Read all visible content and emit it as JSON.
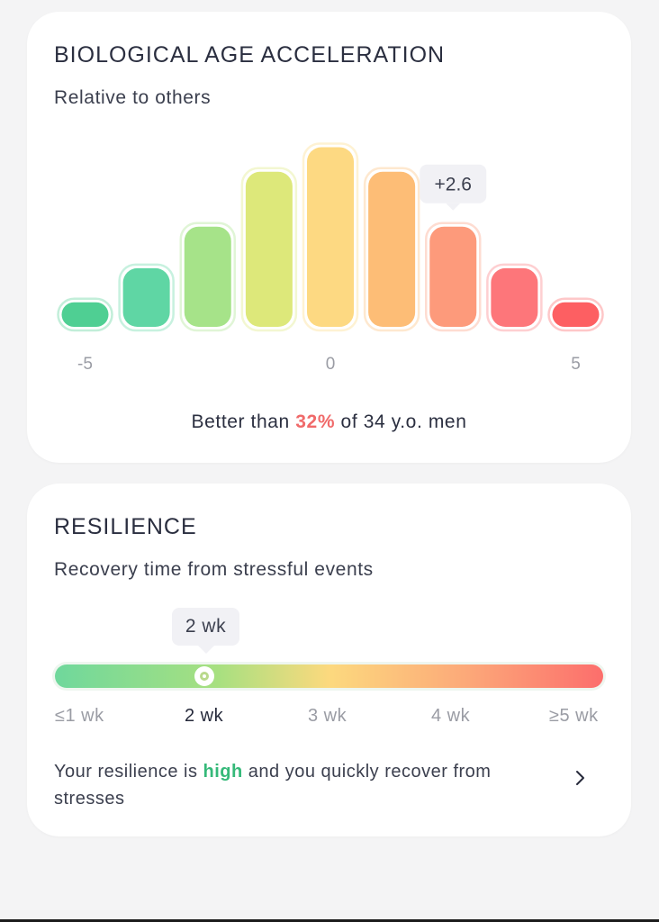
{
  "bio_age": {
    "title": "BIOLOGICAL AGE ACCELERATION",
    "subtitle": "Relative to others",
    "tooltip": "+2.6",
    "footer": {
      "prefix": "Better than ",
      "percent": "32%",
      "suffix": " of 34 y.o. men"
    },
    "colors": {
      "highlight": "#f06a6a"
    }
  },
  "resilience": {
    "title": "RESILIENCE",
    "subtitle": "Recovery time from stressful events",
    "tooltip": "2 wk",
    "current_value_wk": 2,
    "ticks": [
      "≤1 wk",
      "2 wk",
      "3 wk",
      "4 wk",
      "≥5 wk"
    ],
    "active_tick": 1,
    "description": {
      "prefix": "Your resilience is ",
      "level": "high",
      "suffix": " and you quickly recover from stresses"
    },
    "chevron_icon": "chevron-right-icon",
    "colors": {
      "highlight": "#35b979"
    }
  },
  "chart_data": {
    "type": "bar",
    "title": "",
    "xlabel": "",
    "ylabel": "",
    "x_tick_labels": [
      "-5",
      "0",
      "5"
    ],
    "x_tick_values": [
      -5,
      0,
      5
    ],
    "xlim": [
      -5,
      5
    ],
    "ylim": [
      0,
      1
    ],
    "bins": [
      -5,
      -3.75,
      -2.5,
      -1.25,
      0,
      1.25,
      2.5,
      3.75,
      5
    ],
    "values": [
      0.13,
      0.31,
      0.53,
      0.82,
      0.95,
      0.82,
      0.53,
      0.31,
      0.13
    ],
    "colors": [
      "#4fcf93",
      "#5fd6a4",
      "#a6e389",
      "#dde87a",
      "#fdd982",
      "#fdbd76",
      "#fd9a7b",
      "#fd767a",
      "#fd5f62"
    ],
    "highlight_value": 2.6,
    "highlight_label": "+2.6",
    "grid": false,
    "legend": "none"
  }
}
